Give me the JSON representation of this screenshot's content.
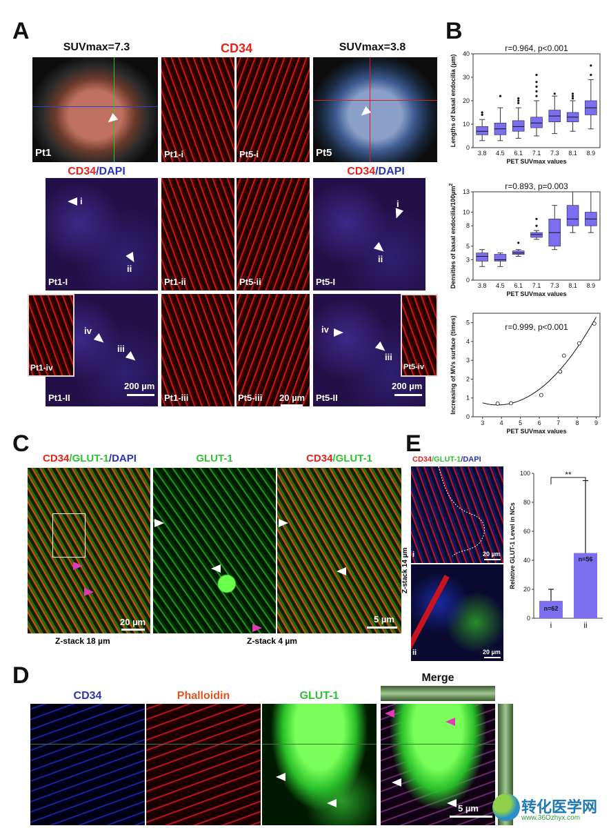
{
  "panels": {
    "a": "A",
    "b": "B",
    "c": "C",
    "d": "D",
    "e": "E"
  },
  "panelA": {
    "suv_left": "SUVmax=7.3",
    "cd34_title": "CD34",
    "suv_right": "SUVmax=3.8",
    "cd34dapi_left_a": "CD34",
    "cd34dapi_left_b": "/DAPI",
    "cd34dapi_right_a": "CD34",
    "cd34dapi_right_b": "/DAPI",
    "labels": {
      "pt1": "Pt1",
      "pt5": "Pt5",
      "pt1_i": "Pt1-i",
      "pt5_i": "Pt5-i",
      "pt1_I": "Pt1-I",
      "pt1_ii": "Pt1-ii",
      "pt5_ii": "Pt5-ii",
      "pt5_I": "Pt5-I",
      "pt1_iv": "Pt1-iv",
      "pt1_II": "Pt1-II",
      "pt1_iii": "Pt1-iii",
      "pt5_iii": "Pt5-iii",
      "pt5_II": "Pt5-II",
      "pt5_iv": "Pt5-iv"
    },
    "arrows": {
      "i": "i",
      "ii": "ii",
      "iii": "iii",
      "iv": "iv"
    },
    "scale_200a": "200 µm",
    "scale_20": "20 µm",
    "scale_200b": "200 µm"
  },
  "panelC": {
    "t1a": "CD34",
    "t1b": "/GLUT-1",
    "t1c": "/DAPI",
    "t2": "GLUT-1",
    "t3a": "CD34",
    "t3b": "/GLUT-1",
    "scale1": "20 µm",
    "scale2": "5 µm",
    "zstack1": "Z-stack 18 µm",
    "zstack2": "Z-stack 4 µm"
  },
  "panelD": {
    "t1": "CD34",
    "t2": "Phalloidin",
    "t3": "GLUT-1",
    "t4": "Merge",
    "scale": "5 µm"
  },
  "panelE": {
    "img_title_a": "CD34",
    "img_title_b": "/GLUT-1",
    "img_title_c": "/DAPI",
    "zstack": "Z-stack 14 µm",
    "scale": "20 µm",
    "sub_i": "i",
    "sub_ii": "ii"
  },
  "watermark": {
    "cn": "转化医学网",
    "url": "www.36Ozhyx.com"
  },
  "chart_data": [
    {
      "type": "box",
      "ylabel": "Lengths of basal endocilia (µm)",
      "xlabel": "PET SUVmax values",
      "stat": "r=0.964, p<0.001",
      "categories": [
        "3.8",
        "4.5",
        "6.1",
        "7.1",
        "7.3",
        "8.1",
        "8.9"
      ],
      "ylim": [
        0,
        40
      ],
      "yticks": [
        0,
        10,
        20,
        30,
        40
      ],
      "boxes": [
        {
          "min": 3,
          "q1": 5.5,
          "median": 7,
          "q3": 9,
          "max": 12
        },
        {
          "min": 3,
          "q1": 5.5,
          "median": 8,
          "q3": 10.5,
          "max": 17
        },
        {
          "min": 4,
          "q1": 7,
          "median": 9,
          "q3": 11.5,
          "max": 17
        },
        {
          "min": 5,
          "q1": 8.5,
          "median": 10.5,
          "q3": 13,
          "max": 20
        },
        {
          "min": 6,
          "q1": 11,
          "median": 13.5,
          "q3": 16,
          "max": 22
        },
        {
          "min": 7,
          "q1": 11,
          "median": 13,
          "q3": 15,
          "max": 20
        },
        {
          "min": 8,
          "q1": 14,
          "median": 17,
          "q3": 20,
          "max": 29
        }
      ],
      "color": "#7b6ff0",
      "outliers": [
        {
          "category": "3.8",
          "values": [
            14,
            15
          ]
        },
        {
          "category": "4.5",
          "values": [
            22
          ]
        },
        {
          "category": "6.1",
          "values": [
            19,
            20,
            21
          ]
        },
        {
          "category": "7.1",
          "values": [
            22,
            24,
            26,
            28,
            31
          ]
        },
        {
          "category": "7.3",
          "values": [
            23
          ]
        },
        {
          "category": "8.1",
          "values": [
            21,
            22,
            23
          ]
        },
        {
          "category": "8.9",
          "values": [
            31,
            35
          ]
        }
      ]
    },
    {
      "type": "box",
      "ylabel": "Densities of basal endocilia/100µm",
      "ylabel_sup": "2",
      "xlabel": "PET SUVmax values",
      "stat": "r=0.893, p=0.003",
      "categories": [
        "3.8",
        "4.5",
        "6.1",
        "7.1",
        "7.3",
        "8.1",
        "8.9"
      ],
      "ylim": [
        0,
        13
      ],
      "yticks": [
        0,
        3,
        5,
        8,
        10,
        13
      ],
      "boxes": [
        {
          "min": 2,
          "q1": 2.8,
          "median": 3.5,
          "q3": 4,
          "max": 4.5
        },
        {
          "min": 2,
          "q1": 2.8,
          "median": 3,
          "q3": 3.8,
          "max": 4
        },
        {
          "min": 3.5,
          "q1": 3.8,
          "median": 4,
          "q3": 4.3,
          "max": 4.5
        },
        {
          "min": 6,
          "q1": 6.3,
          "median": 6.7,
          "q3": 7,
          "max": 7.3
        },
        {
          "min": 4.5,
          "q1": 5,
          "median": 7,
          "q3": 9,
          "max": 11
        },
        {
          "min": 7,
          "q1": 8,
          "median": 9,
          "q3": 11,
          "max": 13
        },
        {
          "min": 7,
          "q1": 8,
          "median": 9,
          "q3": 10,
          "max": 13
        }
      ],
      "color": "#7b6ff0",
      "outliers": [
        {
          "category": "6.1",
          "values": [
            5.5
          ]
        },
        {
          "category": "7.1",
          "values": [
            8,
            9
          ]
        }
      ]
    },
    {
      "type": "scatter",
      "ylabel": "Increasing of MVs surface (times)",
      "xlabel": "PET SUVmax values",
      "stat": "r=0.999, p<0.001",
      "xlim": [
        2.5,
        9.2
      ],
      "ylim": [
        0,
        5.5
      ],
      "xticks": [
        3,
        4,
        5,
        6,
        7,
        8,
        9
      ],
      "yticks": [
        0,
        1,
        2,
        3,
        4,
        5
      ],
      "points": [
        {
          "x": 3.8,
          "y": 0.7
        },
        {
          "x": 4.5,
          "y": 0.72
        },
        {
          "x": 6.1,
          "y": 1.15
        },
        {
          "x": 7.1,
          "y": 2.4
        },
        {
          "x": 7.3,
          "y": 3.25
        },
        {
          "x": 8.1,
          "y": 3.9
        },
        {
          "x": 8.9,
          "y": 4.95
        }
      ],
      "fit": "quadratic"
    },
    {
      "type": "bar",
      "ylabel": "Relative GLUT-1 Level in NCs",
      "categories": [
        "i",
        "ii"
      ],
      "values": [
        12,
        45
      ],
      "errors": [
        8,
        50
      ],
      "n_labels": [
        "n=62",
        "n=56"
      ],
      "ylim": [
        0,
        100
      ],
      "yticks": [
        0,
        20,
        40,
        60,
        80,
        100
      ],
      "significance": "**",
      "color": "#7b6ff0"
    }
  ]
}
